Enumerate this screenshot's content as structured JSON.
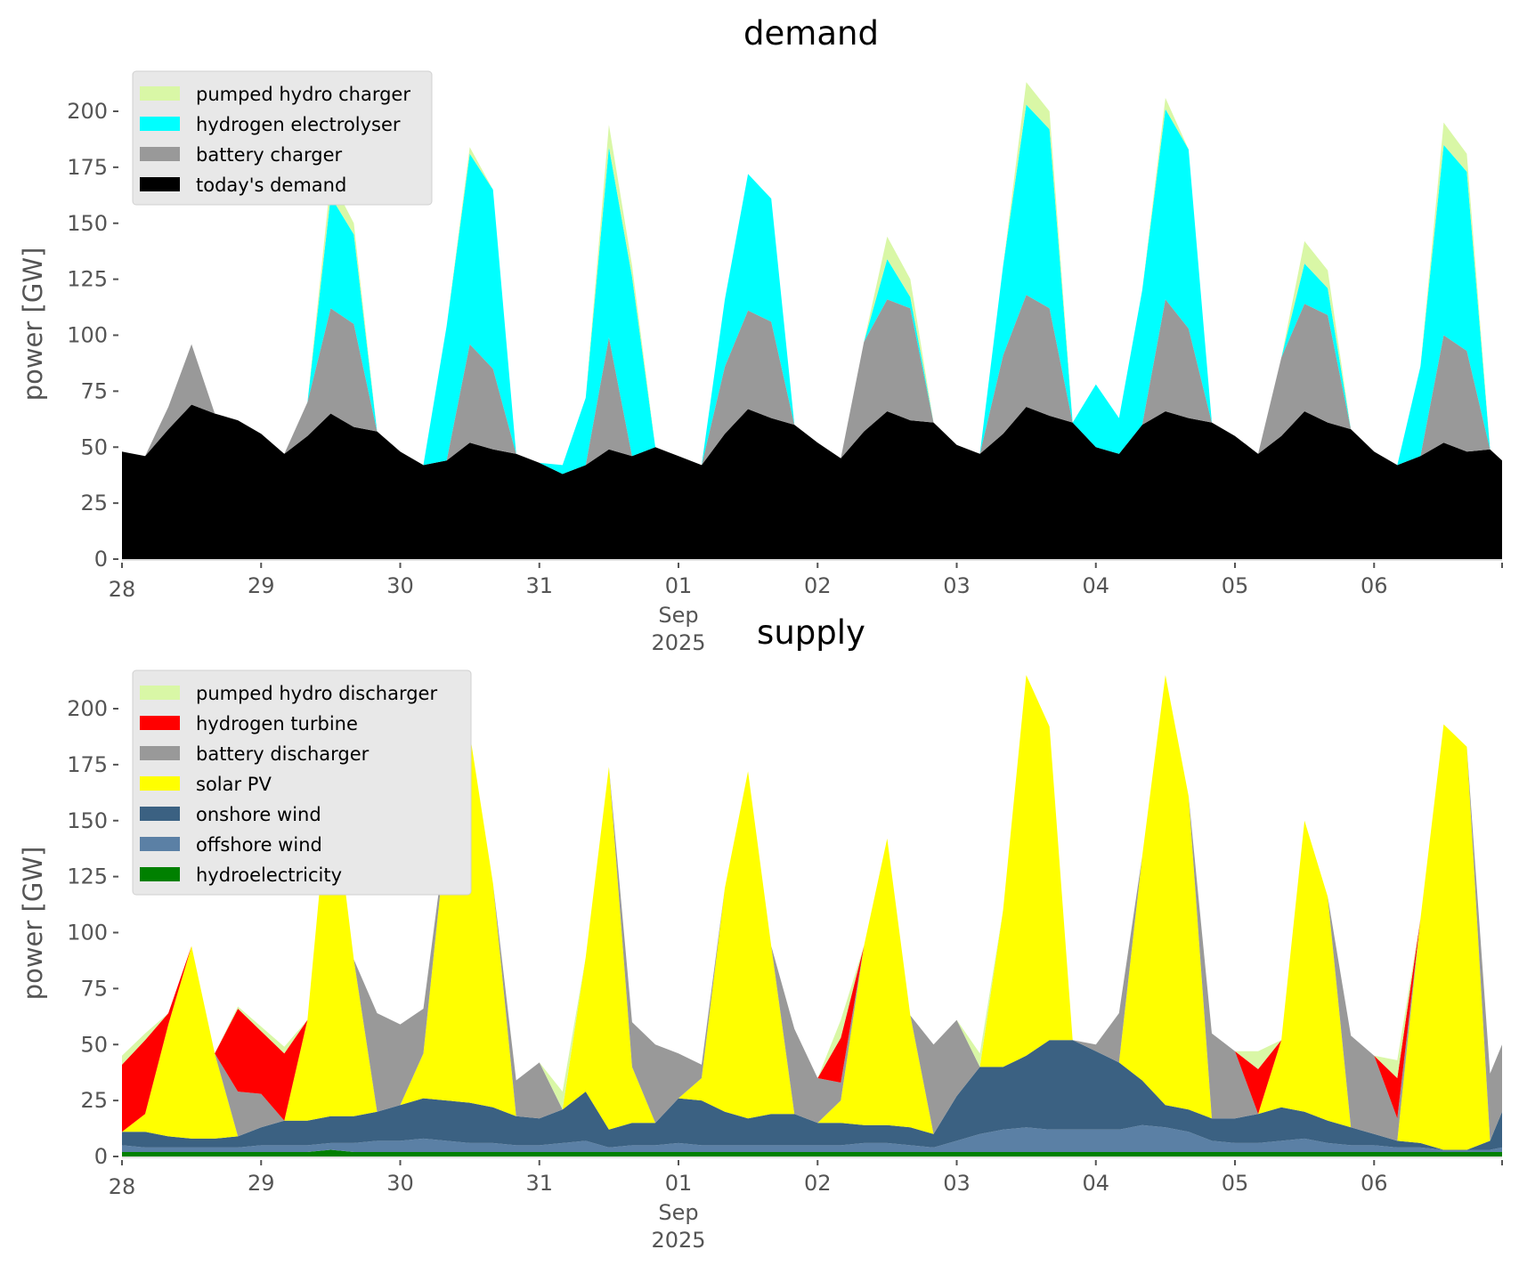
{
  "colors": {
    "pumped_hydro": "#d9f7a6",
    "hydrogen_electrolyser": "#00ffff",
    "battery": "#999999",
    "demand": "#000000",
    "hydrogen_turbine": "#ff0000",
    "solar": "#ffff00",
    "onshore": "#3b6182",
    "offshore": "#5b80a5",
    "hydro": "#008000"
  },
  "chart_data": [
    {
      "type": "area",
      "stacked": true,
      "title": "demand",
      "xlabel": "",
      "ylabel": "power [GW]",
      "ylim": [
        0,
        220
      ],
      "yticks": [
        0,
        25,
        50,
        75,
        100,
        125,
        150,
        175,
        200
      ],
      "xlim_days": [
        0,
        9.92
      ],
      "xticks": [
        {
          "day": 0,
          "label": "28"
        },
        {
          "day": 1,
          "label": "29"
        },
        {
          "day": 2,
          "label": "30"
        },
        {
          "day": 3,
          "label": "31"
        },
        {
          "day": 4,
          "label": "01",
          "sub1": "Sep",
          "sub2": "2025"
        },
        {
          "day": 5,
          "label": "02"
        },
        {
          "day": 6,
          "label": "03"
        },
        {
          "day": 7,
          "label": "04"
        },
        {
          "day": 8,
          "label": "05"
        },
        {
          "day": 9,
          "label": "06"
        }
      ],
      "legend_position": "top-left",
      "x_step_hours": 4,
      "series": [
        {
          "name": "today's demand",
          "color_key": "demand",
          "values": [
            48,
            46,
            58,
            69,
            65,
            62,
            56,
            47,
            55,
            65,
            59,
            57,
            48,
            42,
            44,
            52,
            49,
            47,
            43,
            38,
            42,
            49,
            46,
            50,
            46,
            42,
            56,
            67,
            63,
            60,
            52,
            45,
            57,
            66,
            62,
            61,
            51,
            47,
            56,
            68,
            64,
            61,
            50,
            47,
            60,
            66,
            63,
            61,
            55,
            47,
            55,
            66,
            61,
            58,
            48,
            42,
            46,
            52,
            48,
            49,
            44
          ]
        },
        {
          "name": "battery charger",
          "color_key": "battery",
          "values": [
            0,
            0,
            10,
            27,
            0,
            0,
            0,
            0,
            15,
            47,
            46,
            0,
            0,
            0,
            0,
            44,
            36,
            0,
            0,
            0,
            0,
            50,
            0,
            0,
            0,
            0,
            30,
            44,
            43,
            0,
            0,
            0,
            40,
            50,
            50,
            0,
            0,
            0,
            35,
            50,
            48,
            0,
            0,
            0,
            0,
            50,
            40,
            0,
            0,
            0,
            35,
            48,
            48,
            0,
            0,
            0,
            0,
            48,
            45,
            0,
            0
          ]
        },
        {
          "name": "hydrogen electrolyser",
          "color_key": "hydrogen_electrolyser",
          "values": [
            0,
            0,
            0,
            0,
            0,
            0,
            0,
            0,
            0,
            50,
            40,
            0,
            0,
            0,
            60,
            85,
            80,
            0,
            0,
            4,
            30,
            85,
            80,
            0,
            0,
            0,
            30,
            61,
            55,
            0,
            0,
            0,
            0,
            18,
            5,
            0,
            0,
            0,
            40,
            85,
            80,
            0,
            28,
            16,
            60,
            85,
            80,
            0,
            0,
            0,
            0,
            18,
            12,
            0,
            0,
            0,
            40,
            85,
            80,
            0,
            0
          ]
        },
        {
          "name": "hydrogen electrolyser (legend)",
          "hidden": true,
          "values": []
        },
        {
          "name": "pumped hydro charger",
          "color_key": "pumped_hydro",
          "values": [
            0,
            0,
            0,
            0,
            0,
            0,
            0,
            0,
            0,
            8,
            5,
            0,
            0,
            0,
            0,
            3,
            0,
            0,
            0,
            0,
            0,
            10,
            5,
            0,
            0,
            0,
            0,
            0,
            0,
            0,
            0,
            0,
            0,
            10,
            8,
            0,
            0,
            0,
            0,
            10,
            8,
            0,
            0,
            0,
            0,
            5,
            0,
            0,
            0,
            0,
            0,
            10,
            8,
            0,
            0,
            0,
            0,
            10,
            8,
            0,
            0
          ]
        }
      ],
      "legend": [
        "pumped hydro charger",
        "hydrogen electrolyser",
        "battery charger",
        "today's demand"
      ]
    },
    {
      "type": "area",
      "stacked": true,
      "title": "supply",
      "xlabel": "",
      "ylabel": "power [GW]",
      "ylim": [
        0,
        220
      ],
      "yticks": [
        0,
        25,
        50,
        75,
        100,
        125,
        150,
        175,
        200
      ],
      "xlim_days": [
        0,
        9.92
      ],
      "xticks": [
        {
          "day": 0,
          "label": "28"
        },
        {
          "day": 1,
          "label": "29"
        },
        {
          "day": 2,
          "label": "30"
        },
        {
          "day": 3,
          "label": "31"
        },
        {
          "day": 4,
          "label": "01",
          "sub1": "Sep",
          "sub2": "2025"
        },
        {
          "day": 5,
          "label": "02"
        },
        {
          "day": 6,
          "label": "03"
        },
        {
          "day": 7,
          "label": "04"
        },
        {
          "day": 8,
          "label": "05"
        },
        {
          "day": 9,
          "label": "06"
        }
      ],
      "legend_position": "top-left",
      "x_step_hours": 4,
      "series": [
        {
          "name": "hydroelectricity",
          "color_key": "hydro",
          "values": [
            2,
            2,
            2,
            2,
            2,
            2,
            2,
            2,
            2,
            3,
            2,
            2,
            2,
            2,
            2,
            2,
            2,
            2,
            2,
            2,
            2,
            2,
            2,
            2,
            2,
            2,
            2,
            2,
            2,
            2,
            2,
            2,
            2,
            2,
            2,
            2,
            2,
            2,
            2,
            2,
            2,
            2,
            2,
            2,
            2,
            2,
            2,
            2,
            2,
            2,
            2,
            2,
            2,
            2,
            2,
            2,
            2,
            2,
            2,
            2,
            2
          ]
        },
        {
          "name": "offshore wind",
          "color_key": "offshore",
          "values": [
            3,
            2,
            2,
            2,
            2,
            2,
            3,
            3,
            3,
            3,
            4,
            5,
            5,
            6,
            5,
            4,
            4,
            3,
            3,
            4,
            5,
            2,
            3,
            3,
            4,
            3,
            3,
            3,
            3,
            3,
            3,
            3,
            4,
            4,
            3,
            2,
            5,
            8,
            10,
            11,
            10,
            10,
            10,
            10,
            12,
            11,
            9,
            5,
            4,
            4,
            5,
            6,
            4,
            3,
            3,
            2,
            2,
            1,
            1,
            1,
            2
          ]
        },
        {
          "name": "onshore wind",
          "color_key": "onshore",
          "values": [
            6,
            7,
            5,
            4,
            4,
            5,
            8,
            11,
            11,
            12,
            12,
            13,
            16,
            18,
            18,
            18,
            16,
            13,
            12,
            15,
            22,
            8,
            10,
            10,
            20,
            20,
            15,
            12,
            14,
            14,
            10,
            10,
            8,
            8,
            8,
            6,
            20,
            30,
            28,
            32,
            40,
            40,
            35,
            30,
            20,
            10,
            10,
            10,
            11,
            13,
            15,
            12,
            10,
            8,
            5,
            3,
            2,
            0,
            0,
            4,
            16
          ]
        },
        {
          "name": "solar PV",
          "color_key": "solar",
          "values": [
            0,
            8,
            50,
            86,
            38,
            0,
            0,
            0,
            45,
            154,
            70,
            0,
            0,
            20,
            120,
            165,
            100,
            0,
            0,
            0,
            60,
            162,
            25,
            0,
            0,
            10,
            100,
            155,
            75,
            0,
            0,
            10,
            80,
            128,
            50,
            0,
            0,
            0,
            70,
            170,
            140,
            0,
            0,
            0,
            100,
            192,
            140,
            0,
            0,
            0,
            30,
            130,
            100,
            0,
            0,
            0,
            100,
            190,
            180,
            0,
            0
          ]
        },
        {
          "name": "battery discharger",
          "color_key": "battery",
          "values": [
            0,
            0,
            0,
            0,
            0,
            20,
            15,
            0,
            0,
            0,
            0,
            44,
            36,
            20,
            0,
            0,
            0,
            16,
            25,
            0,
            0,
            0,
            20,
            35,
            20,
            6,
            0,
            0,
            0,
            38,
            20,
            8,
            0,
            0,
            0,
            40,
            34,
            0,
            0,
            0,
            0,
            0,
            3,
            22,
            0,
            0,
            0,
            38,
            30,
            0,
            0,
            0,
            0,
            41,
            35,
            10,
            0,
            0,
            0,
            30,
            30
          ]
        },
        {
          "name": "hydrogen turbine",
          "color_key": "hydrogen_turbine",
          "values": [
            30,
            33,
            5,
            0,
            0,
            37,
            28,
            30,
            0,
            0,
            0,
            0,
            0,
            0,
            0,
            0,
            0,
            0,
            0,
            0,
            0,
            0,
            0,
            0,
            0,
            0,
            0,
            0,
            0,
            0,
            0,
            20,
            0,
            0,
            0,
            0,
            0,
            0,
            0,
            0,
            0,
            0,
            0,
            0,
            0,
            0,
            0,
            0,
            0,
            20,
            0,
            0,
            0,
            0,
            0,
            18,
            0,
            0,
            0,
            0,
            0
          ]
        },
        {
          "name": "pumped hydro discharger",
          "color_key": "pumped_hydro",
          "values": [
            4,
            3,
            0,
            0,
            0,
            1,
            2,
            3,
            0,
            0,
            0,
            0,
            0,
            0,
            0,
            0,
            0,
            0,
            0,
            8,
            0,
            0,
            0,
            0,
            0,
            0,
            0,
            0,
            0,
            0,
            0,
            8,
            0,
            0,
            0,
            0,
            0,
            6,
            0,
            0,
            0,
            0,
            0,
            0,
            0,
            0,
            0,
            0,
            0,
            8,
            0,
            0,
            0,
            0,
            0,
            8,
            0,
            0,
            0,
            0,
            0
          ]
        }
      ],
      "legend": [
        "pumped hydro discharger",
        "hydrogen turbine",
        "battery discharger",
        "solar PV",
        "onshore wind",
        "offshore wind",
        "hydroelectricity"
      ]
    }
  ]
}
